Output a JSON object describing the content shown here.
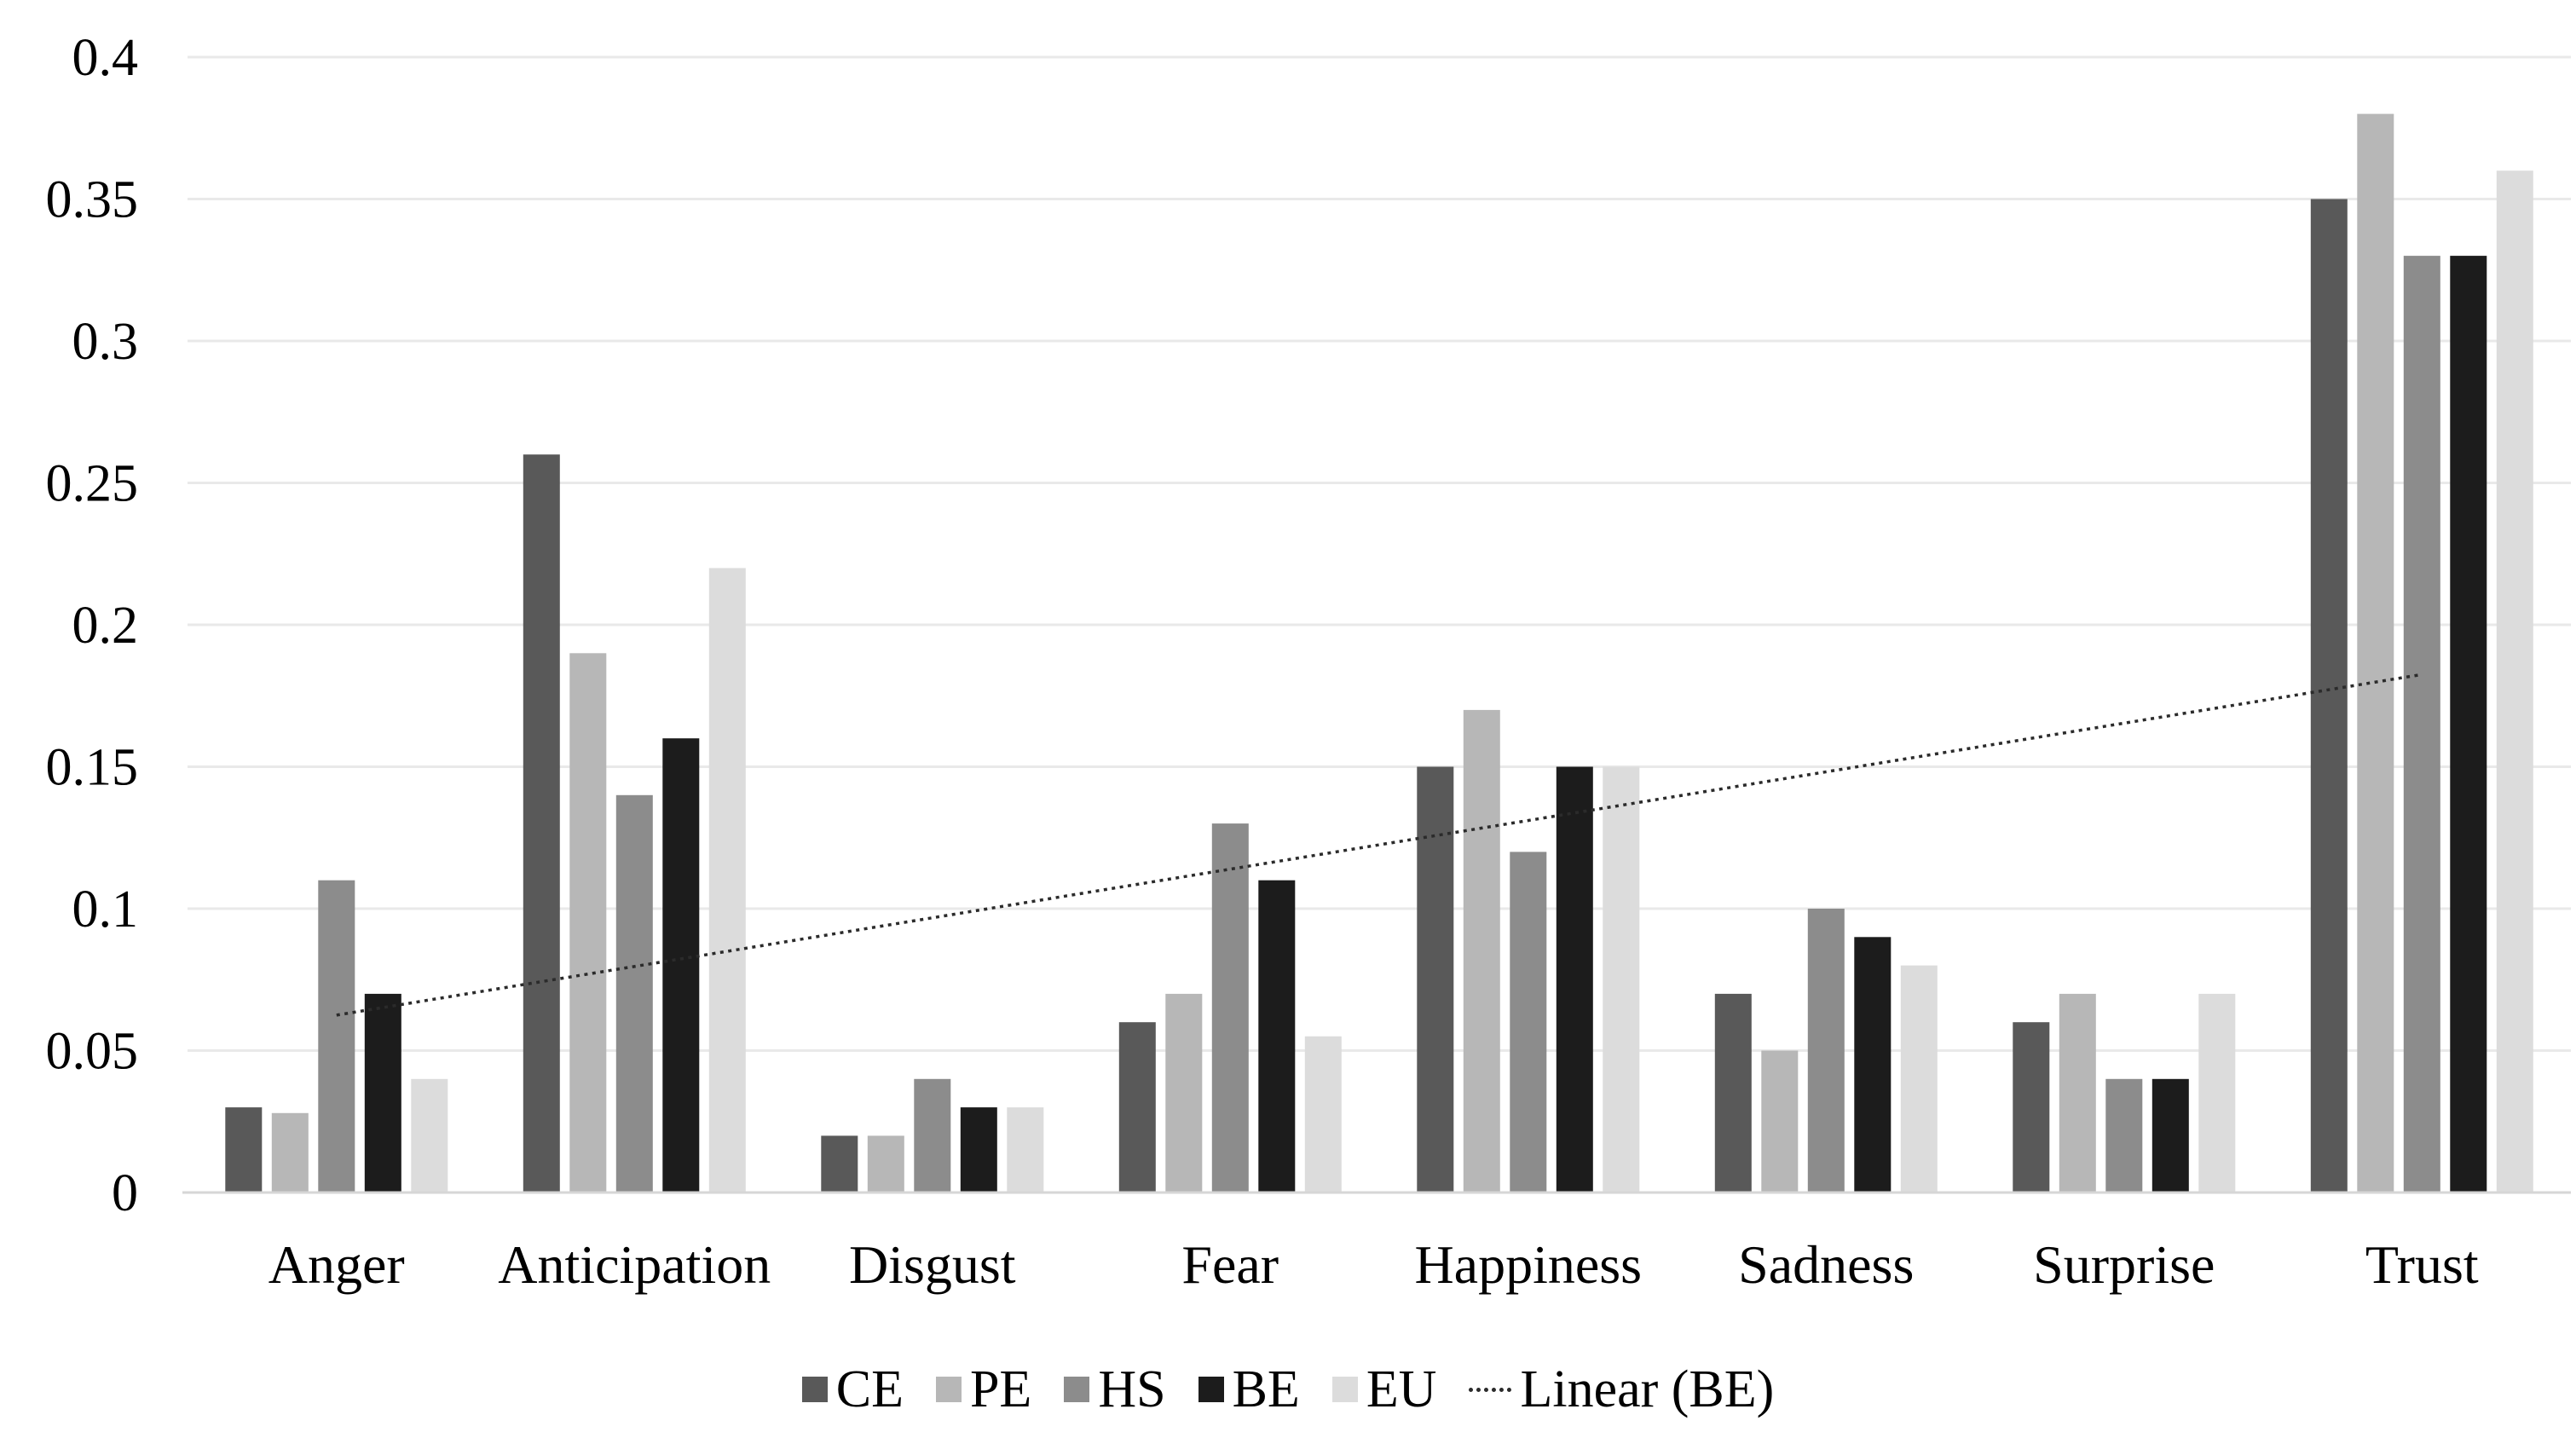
{
  "chart_data": {
    "type": "bar",
    "categories": [
      "Anger",
      "Anticipation",
      "Disgust",
      "Fear",
      "Happiness",
      "Sadness",
      "Surprise",
      "Trust"
    ],
    "series": [
      {
        "name": "CE",
        "color": "#595959",
        "values": [
          0.03,
          0.26,
          0.02,
          0.06,
          0.15,
          0.07,
          0.06,
          0.35
        ]
      },
      {
        "name": "PE",
        "color": "#b7b7b7",
        "values": [
          0.028,
          0.19,
          0.02,
          0.07,
          0.17,
          0.05,
          0.07,
          0.38
        ]
      },
      {
        "name": "HS",
        "color": "#8c8c8c",
        "values": [
          0.11,
          0.14,
          0.04,
          0.13,
          0.12,
          0.1,
          0.04,
          0.33
        ]
      },
      {
        "name": "BE",
        "color": "#1c1c1c",
        "values": [
          0.07,
          0.16,
          0.03,
          0.11,
          0.15,
          0.09,
          0.04,
          0.33
        ]
      },
      {
        "name": "EU",
        "color": "#dcdcdc",
        "values": [
          0.04,
          0.22,
          0.03,
          0.055,
          0.15,
          0.08,
          0.07,
          0.36
        ]
      }
    ],
    "trendline": {
      "label": "Linear (BE)",
      "based_on_series": "BE",
      "style": "dotted",
      "color": "#2b2b2b",
      "start_value": 0.0625,
      "end_value": 0.1825
    },
    "y_axis": {
      "min": 0,
      "max": 0.4,
      "step": 0.05,
      "tick_labels": [
        "0",
        "0.05",
        "0.1",
        "0.15",
        "0.2",
        "0.25",
        "0.3",
        "0.35",
        "0.4"
      ]
    },
    "legend": {
      "position": "bottom",
      "entries": [
        "CE",
        "PE",
        "HS",
        "BE",
        "EU",
        "Linear (BE)"
      ]
    },
    "grid": true,
    "colors": {
      "background": "#ffffff",
      "gridline": "#e9e9e9",
      "axis_line": "#d6d6d6",
      "text": "#000000"
    }
  }
}
